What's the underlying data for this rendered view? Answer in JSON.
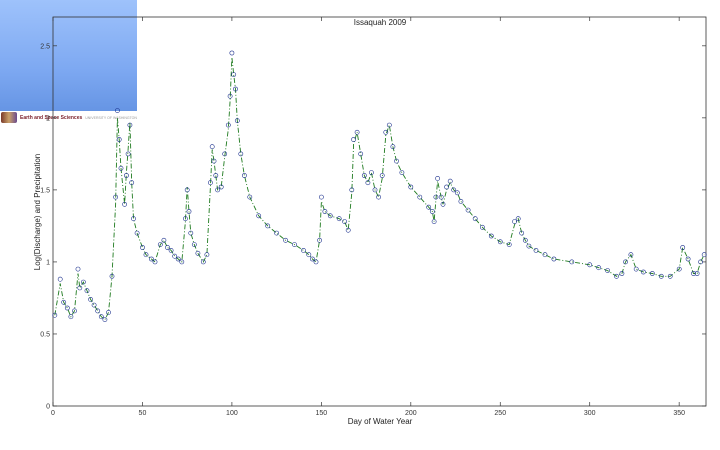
{
  "logo": {
    "text": "Earth and Space Sciences",
    "subtext": "UNIVERSITY OF WASHINGTON"
  },
  "chart_data": {
    "type": "line",
    "title": "Issaquah 2009",
    "xlabel": "Day of Water Year",
    "ylabel": "Log(Discharge) and Precipitation",
    "xlim": [
      0,
      365
    ],
    "ylim": [
      0,
      2.7
    ],
    "x_ticks": [
      0,
      50,
      100,
      150,
      200,
      250,
      300,
      350
    ],
    "y_ticks": [
      0,
      0.5,
      1,
      1.5,
      2,
      2.5
    ],
    "y_tick_labels": [
      "0",
      "0.5",
      "1",
      "1.5",
      "2",
      "2.5"
    ],
    "colors": {
      "observed": "#1a2f8c",
      "modeled": "#1e7a1e"
    },
    "series": [
      {
        "style": "circles",
        "x": [
          1,
          4,
          6,
          8,
          10,
          12,
          14,
          15,
          17,
          19,
          21,
          23,
          25,
          27,
          29,
          31,
          33,
          35,
          36,
          37,
          38,
          40,
          41,
          42,
          43,
          44,
          45,
          47,
          50,
          52,
          55,
          57,
          60,
          62,
          64,
          66,
          68,
          70,
          72,
          74,
          75,
          76,
          77,
          79,
          81,
          84,
          86,
          88,
          89,
          90,
          91,
          92,
          94,
          96,
          98,
          99,
          100,
          101,
          102,
          103,
          105,
          107,
          110,
          115,
          120,
          125,
          130,
          135,
          140,
          143,
          145,
          147,
          149,
          150,
          152,
          155,
          160,
          163,
          165,
          167,
          168,
          170,
          172,
          174,
          176,
          178,
          180,
          182,
          184,
          186,
          188,
          190,
          192,
          195,
          200,
          205,
          210,
          212,
          213,
          214,
          215,
          217,
          218,
          220,
          222,
          224,
          226,
          228,
          232,
          236,
          240,
          245,
          250,
          255,
          258,
          260,
          262,
          264,
          266,
          270,
          275,
          280,
          290,
          300,
          305,
          310,
          315,
          318,
          320,
          323,
          326,
          330,
          335,
          340,
          345,
          350,
          352,
          355,
          358,
          360,
          362,
          364
        ],
        "y": [
          0.63,
          0.88,
          0.72,
          0.68,
          0.62,
          0.66,
          0.95,
          0.82,
          0.86,
          0.8,
          0.74,
          0.7,
          0.66,
          0.62,
          0.6,
          0.65,
          0.9,
          1.45,
          2.05,
          1.85,
          1.65,
          1.4,
          1.6,
          1.75,
          1.95,
          1.55,
          1.3,
          1.2,
          1.1,
          1.05,
          1.02,
          1.0,
          1.12,
          1.15,
          1.1,
          1.08,
          1.04,
          1.02,
          1.0,
          1.3,
          1.5,
          1.35,
          1.2,
          1.12,
          1.06,
          1.0,
          1.05,
          1.55,
          1.8,
          1.7,
          1.6,
          1.5,
          1.52,
          1.75,
          1.95,
          2.15,
          2.45,
          2.3,
          2.2,
          1.98,
          1.75,
          1.6,
          1.45,
          1.32,
          1.25,
          1.2,
          1.15,
          1.12,
          1.08,
          1.05,
          1.02,
          1.0,
          1.15,
          1.45,
          1.35,
          1.32,
          1.3,
          1.28,
          1.22,
          1.5,
          1.85,
          1.9,
          1.75,
          1.6,
          1.55,
          1.62,
          1.5,
          1.45,
          1.6,
          1.9,
          1.95,
          1.8,
          1.7,
          1.62,
          1.52,
          1.45,
          1.38,
          1.35,
          1.28,
          1.45,
          1.58,
          1.45,
          1.4,
          1.52,
          1.56,
          1.5,
          1.48,
          1.42,
          1.36,
          1.3,
          1.24,
          1.18,
          1.14,
          1.12,
          1.28,
          1.3,
          1.2,
          1.15,
          1.11,
          1.08,
          1.05,
          1.02,
          1.0,
          0.98,
          0.96,
          0.94,
          0.9,
          0.92,
          1.0,
          1.05,
          0.95,
          0.93,
          0.92,
          0.9,
          0.9,
          0.95,
          1.1,
          1.02,
          0.92,
          0.92,
          1.0,
          1.05
        ],
        "name": ""
      },
      {
        "style": "dashdot",
        "x": [
          1,
          4,
          6,
          8,
          10,
          12,
          14,
          15,
          17,
          19,
          21,
          23,
          25,
          27,
          29,
          31,
          33,
          35,
          36,
          37,
          38,
          40,
          41,
          42,
          43,
          44,
          45,
          47,
          50,
          52,
          55,
          57,
          60,
          62,
          64,
          66,
          68,
          70,
          72,
          74,
          75,
          76,
          77,
          79,
          81,
          84,
          86,
          88,
          89,
          90,
          91,
          92,
          94,
          96,
          98,
          99,
          100,
          101,
          102,
          103,
          105,
          107,
          110,
          115,
          120,
          125,
          130,
          135,
          140,
          143,
          145,
          147,
          149,
          150,
          152,
          155,
          160,
          163,
          165,
          167,
          168,
          170,
          172,
          174,
          176,
          178,
          180,
          182,
          184,
          186,
          188,
          190,
          192,
          195,
          200,
          205,
          210,
          212,
          213,
          214,
          215,
          217,
          218,
          220,
          222,
          224,
          226,
          228,
          232,
          236,
          240,
          245,
          250,
          255,
          258,
          260,
          262,
          264,
          266,
          270,
          275,
          280,
          290,
          300,
          305,
          310,
          315,
          318,
          320,
          323,
          326,
          330,
          335,
          340,
          345,
          350,
          352,
          355,
          358,
          360,
          362,
          364
        ],
        "y": [
          0.63,
          0.85,
          0.72,
          0.68,
          0.62,
          0.66,
          0.92,
          0.82,
          0.86,
          0.8,
          0.74,
          0.7,
          0.66,
          0.62,
          0.6,
          0.65,
          0.9,
          1.4,
          2.0,
          1.85,
          1.65,
          1.4,
          1.62,
          1.78,
          1.97,
          1.55,
          1.3,
          1.2,
          1.1,
          1.05,
          1.02,
          1.0,
          1.12,
          1.15,
          1.1,
          1.08,
          1.04,
          1.02,
          1.0,
          1.28,
          1.52,
          1.35,
          1.2,
          1.12,
          1.06,
          1.0,
          1.05,
          1.52,
          1.78,
          1.7,
          1.6,
          1.5,
          1.52,
          1.73,
          1.92,
          2.12,
          2.42,
          2.3,
          2.2,
          1.98,
          1.75,
          1.6,
          1.45,
          1.32,
          1.25,
          1.2,
          1.15,
          1.12,
          1.08,
          1.05,
          1.02,
          1.0,
          1.15,
          1.42,
          1.35,
          1.32,
          1.3,
          1.28,
          1.22,
          1.48,
          1.82,
          1.9,
          1.75,
          1.6,
          1.55,
          1.62,
          1.5,
          1.45,
          1.58,
          1.88,
          1.95,
          1.8,
          1.7,
          1.62,
          1.52,
          1.45,
          1.38,
          1.35,
          1.28,
          1.43,
          1.56,
          1.45,
          1.4,
          1.5,
          1.55,
          1.5,
          1.48,
          1.42,
          1.36,
          1.3,
          1.24,
          1.18,
          1.14,
          1.12,
          1.26,
          1.3,
          1.2,
          1.15,
          1.11,
          1.08,
          1.05,
          1.02,
          1.0,
          0.98,
          0.96,
          0.94,
          0.9,
          0.92,
          1.0,
          1.05,
          0.95,
          0.93,
          0.92,
          0.9,
          0.9,
          0.95,
          1.1,
          1.02,
          0.92,
          0.92,
          1.0,
          1.05
        ],
        "name": ""
      }
    ],
    "grid": false,
    "legend": "none"
  }
}
